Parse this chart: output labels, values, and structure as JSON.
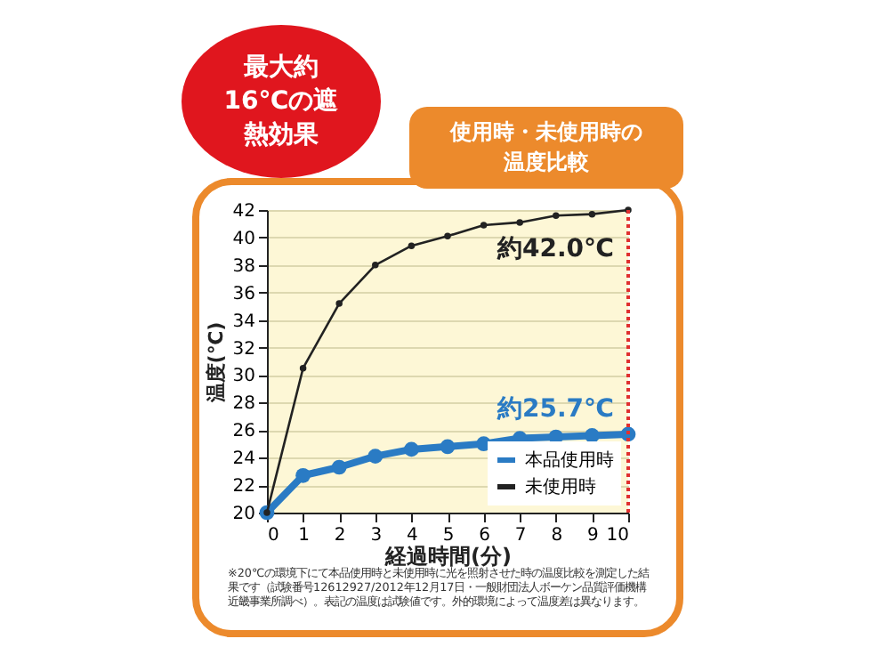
{
  "chart_data": {
    "type": "line",
    "title": "使用時・未使用時の温度比較",
    "xlabel": "経過時間(分)",
    "ylabel": "温度(℃)",
    "x": [
      0,
      1,
      2,
      3,
      4,
      5,
      6,
      7,
      8,
      9,
      10
    ],
    "series": [
      {
        "name": "本品使用時",
        "color": "#2a7bc4",
        "values": [
          20,
          22.7,
          23.3,
          24.1,
          24.6,
          24.8,
          25.0,
          25.4,
          25.5,
          25.6,
          25.7
        ]
      },
      {
        "name": "未使用時",
        "color": "#222222",
        "values": [
          20,
          30.5,
          35.2,
          38,
          39.4,
          40.1,
          40.9,
          41.1,
          41.6,
          41.7,
          42.0
        ]
      }
    ],
    "xlim": [
      0,
      10
    ],
    "xticks": [
      0,
      1,
      2,
      3,
      4,
      5,
      6,
      7,
      8,
      9,
      10
    ],
    "ylim": [
      20,
      42
    ],
    "yticks": [
      20,
      22,
      24,
      26,
      28,
      30,
      32,
      34,
      36,
      38,
      40,
      42
    ],
    "grid": "y",
    "legend": "bottom right",
    "marker": "circle",
    "ref_lines": [
      {
        "axis": "x",
        "value": 10,
        "color": "#e03030",
        "line_style": "dotted"
      }
    ],
    "annotations": [
      {
        "text": "約42.0℃",
        "x": 10,
        "y": 42
      },
      {
        "text": "約25.7℃",
        "x": 10,
        "y": 25.7
      },
      "最大約16℃の遮熱効果",
      "※20℃の環境下にて本品使用時と未使用時に光を照射させた時の温度比較を測定した結果です（試験番号12612927/2012年12月17日・一般財団法人ボーケン品質評価機構近畿事業所調べ）。表記の温度は試験値です。外的環境によって温度差は異なります。"
    ]
  }
}
